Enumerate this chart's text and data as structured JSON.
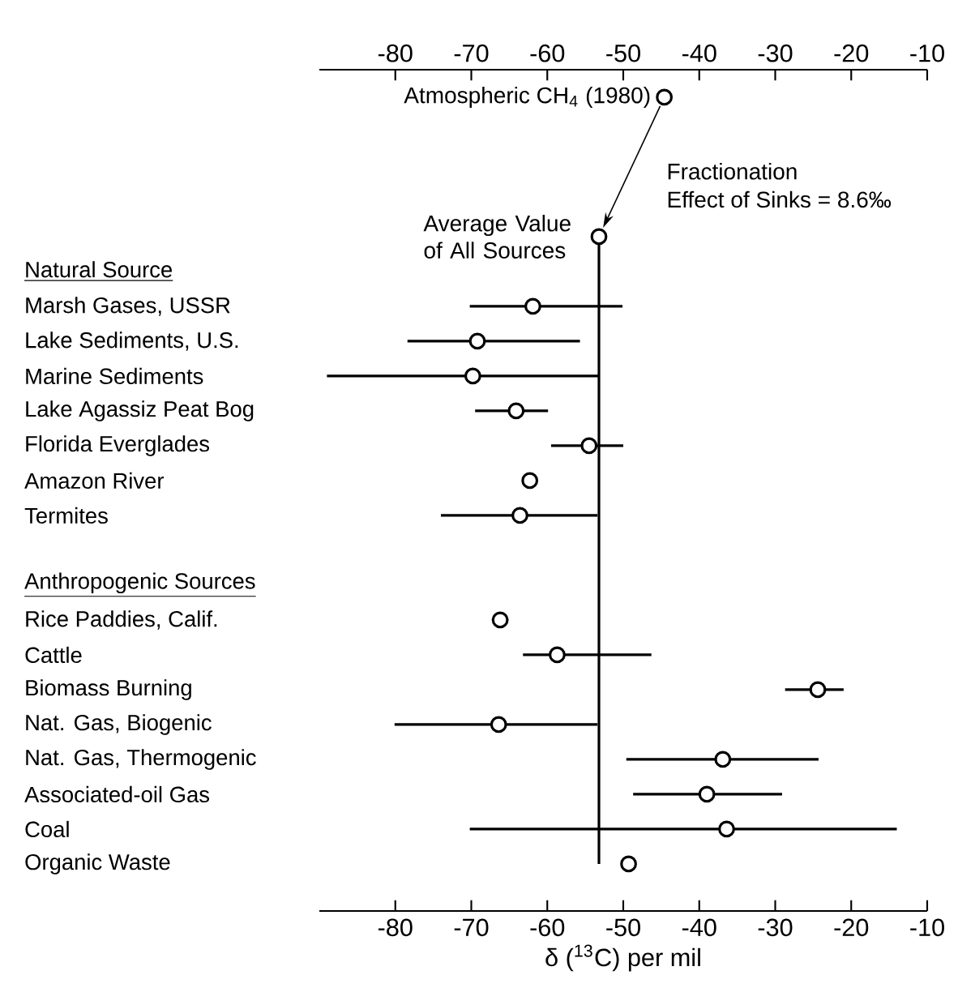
{
  "chart_data": {
    "type": "scatter",
    "orientation": "horizontal",
    "xlabel": "δ ($^{13}$C) per mil",
    "categories": [
      null,
      null,
      null,
      null,
      null,
      "Natural Source",
      "Marsh Gases, USSR",
      "Lake Sediments, U.S.",
      "Marine Sediments",
      "Lake Agassiz Peat Bog",
      "Florida Everglades",
      "Amazon River",
      "Termites",
      null,
      "Anthropogenic Sources",
      "Rice Paddies, Calif.",
      "Cattle",
      "Biomass Burning",
      "Nat. Gas, Biogenic",
      "Nat. Gas, Thermogenic",
      "Associated-oil Gas",
      "Coal",
      "Organic Waste"
    ],
    "xlim": [
      -90,
      -10
    ],
    "xticks": [
      -80,
      -70,
      -60,
      -50,
      -40,
      -30,
      -20,
      -10
    ],
    "x2lim": [
      -90,
      -10
    ],
    "x2ticks": [
      -80,
      -70,
      -60,
      -50,
      -40,
      -30,
      -20,
      -10
    ],
    "annotations": [
      "Fractionation",
      "Effect of Sinks = 8.6‰"
    ],
    "series": [
      {
        "type": "line",
        "marker": "none",
        "color": "#000000",
        "values": [
          null,
          null,
          null,
          null,
          -53.2,
          -53.2,
          -53.2,
          -53.2,
          -53.2,
          -53.2,
          -53.2,
          -53.2,
          -53.2,
          -53.2,
          -53.2,
          -53.2,
          -53.2,
          -53.2,
          -53.2,
          -53.2,
          -53.2,
          -53.2,
          -53.2
        ]
      },
      {
        "marker": "circle",
        "color": "#000000",
        "values": [
          -44.6,
          null,
          null,
          null,
          -53.2,
          null,
          -61.9,
          -69.2,
          -69.8,
          -64.1,
          -54.5,
          -62.3,
          -63.6,
          null,
          null,
          -66.2,
          -58.7,
          -24.4,
          -66.4,
          -36.9,
          -39.0,
          -36.4,
          -49.3
        ],
        "errors": [
          null,
          null,
          null,
          null,
          null,
          null,
          [
            -70.2,
            -50.1
          ],
          [
            -78.4,
            -55.7
          ],
          [
            -89,
            -53.3
          ],
          [
            -69.5,
            -59.9
          ],
          [
            -59.5,
            -50.0
          ],
          null,
          [
            -74.0,
            -53.4
          ],
          null,
          null,
          null,
          [
            -63.2,
            -46.3
          ],
          [
            -28.7,
            -21.0
          ],
          [
            -80.1,
            -53.4
          ],
          [
            -49.6,
            -24.3
          ],
          [
            -48.7,
            -29.1
          ],
          [
            -70.2,
            -14.0
          ],
          null
        ],
        "value_labels": [
          "Atmospheric CH$_{4}$ (1980)",
          null,
          null,
          null,
          "Average Value of All Sources",
          null,
          null,
          null,
          null,
          null,
          null,
          null,
          null,
          null,
          null,
          null,
          null,
          null,
          null,
          null,
          null,
          null,
          null
        ]
      }
    ]
  }
}
